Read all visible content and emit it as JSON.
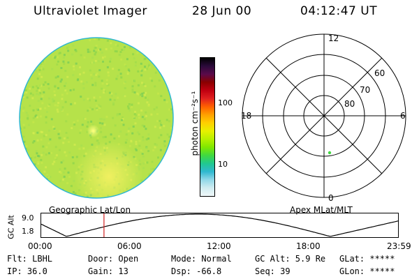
{
  "header": {
    "title": "Ultraviolet Imager",
    "date": "28 Jun 00",
    "time": "04:12:47 UT"
  },
  "colorbar": {
    "unit_label": "photon cm⁻²s⁻¹",
    "ticks": [
      "100",
      "10"
    ],
    "colors": [
      "#000000",
      "#2a0a3a",
      "#5a0a4a",
      "#8a0000",
      "#c00010",
      "#e02020",
      "#ff6000",
      "#ffa000",
      "#ffd000",
      "#e8f000",
      "#b8f000",
      "#80e800",
      "#40d840",
      "#20c890",
      "#30b8d0",
      "#90d8e8",
      "#d0ecf0",
      "#f0f8fa"
    ]
  },
  "polar_plot": {
    "clock_labels": [
      "12",
      "18",
      "6",
      "0"
    ],
    "lat_labels": [
      "60",
      "70",
      "80"
    ],
    "point_color": "#40d840"
  },
  "timeline": {
    "left_title": "Geographic Lat/Lon",
    "right_title": "Apex MLat/MLT",
    "y_axis_label": "GC Alt",
    "y_ticks": [
      "9.0",
      "1.8"
    ],
    "x_ticks": [
      "00:00",
      "06:00",
      "12:00",
      "18:00",
      "23:59"
    ],
    "marker_time": "04:12:47"
  },
  "status": {
    "row1": [
      "Flt: LBHL",
      "Door: Open",
      "Mode: Normal",
      "GC Alt: 5.9 Re",
      "GLat: *****"
    ],
    "row2": [
      "IP: 36.0",
      "Gain: 13",
      "Dsp:  -66.8",
      "Seq: 39",
      "GLon: *****"
    ]
  }
}
